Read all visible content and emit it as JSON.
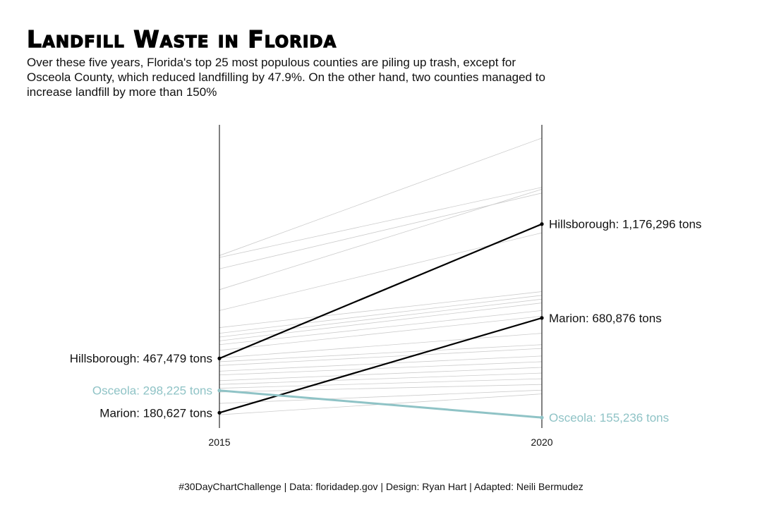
{
  "title": "Landfill Waste in Florida",
  "subtitle": "Over these five years, Florida's top 25 most populous counties are piling up trash, except for Osceola County, which reduced landfilling by 47.9%. On the other hand, two counties managed to increase landfill by more than 150%",
  "caption": "#30DayChartChallenge | Data: floridadep.gov | Design: Ryan Hart | Adapted: Neili Bermudez",
  "colors": {
    "background": "#ffffff",
    "background_lines": "#cccccc",
    "highlight": "#000000",
    "osceola": "#8fc3c6",
    "axis": "#000000"
  },
  "chart_data": {
    "type": "line",
    "chart_style": "slope",
    "x": [
      "2015",
      "2020"
    ],
    "ylim": [
      100000,
      1700000
    ],
    "grid": false,
    "highlighted_series": [
      {
        "name": "Hillsborough",
        "values": [
          467479,
          1176296
        ],
        "start_label": "Hillsborough: 467,479 tons",
        "end_label": "Hillsborough: 1,176,296 tons",
        "color": "#000000"
      },
      {
        "name": "Marion",
        "values": [
          180627,
          680876
        ],
        "start_label": "Marion: 180,627 tons",
        "end_label": "Marion: 680,876 tons",
        "color": "#000000"
      },
      {
        "name": "Osceola",
        "values": [
          298225,
          155236
        ],
        "start_label": "Osceola: 298,225 tons",
        "end_label": "Osceola: 155,236 tons",
        "color": "#8fc3c6"
      }
    ],
    "background_series": [
      {
        "values": [
          1010000,
          1630000
        ]
      },
      {
        "values": [
          1000000,
          1370000
        ]
      },
      {
        "values": [
          940000,
          1340000
        ]
      },
      {
        "values": [
          830000,
          1360000
        ]
      },
      {
        "values": [
          720000,
          1130000
        ]
      },
      {
        "values": [
          630000,
          820000
        ]
      },
      {
        "values": [
          600000,
          800000
        ]
      },
      {
        "values": [
          580000,
          780000
        ]
      },
      {
        "values": [
          560000,
          760000
        ]
      },
      {
        "values": [
          540000,
          720000
        ]
      },
      {
        "values": [
          510000,
          690000
        ]
      },
      {
        "values": [
          470000,
          600000
        ]
      },
      {
        "values": [
          450000,
          540000
        ]
      },
      {
        "values": [
          430000,
          520000
        ]
      },
      {
        "values": [
          400000,
          480000
        ]
      },
      {
        "values": [
          380000,
          450000
        ]
      },
      {
        "values": [
          350000,
          420000
        ]
      },
      {
        "values": [
          330000,
          390000
        ]
      },
      {
        "values": [
          310000,
          360000
        ]
      },
      {
        "values": [
          290000,
          330000
        ]
      },
      {
        "values": [
          230000,
          300000
        ]
      },
      {
        "values": [
          170000,
          280000
        ]
      }
    ]
  }
}
